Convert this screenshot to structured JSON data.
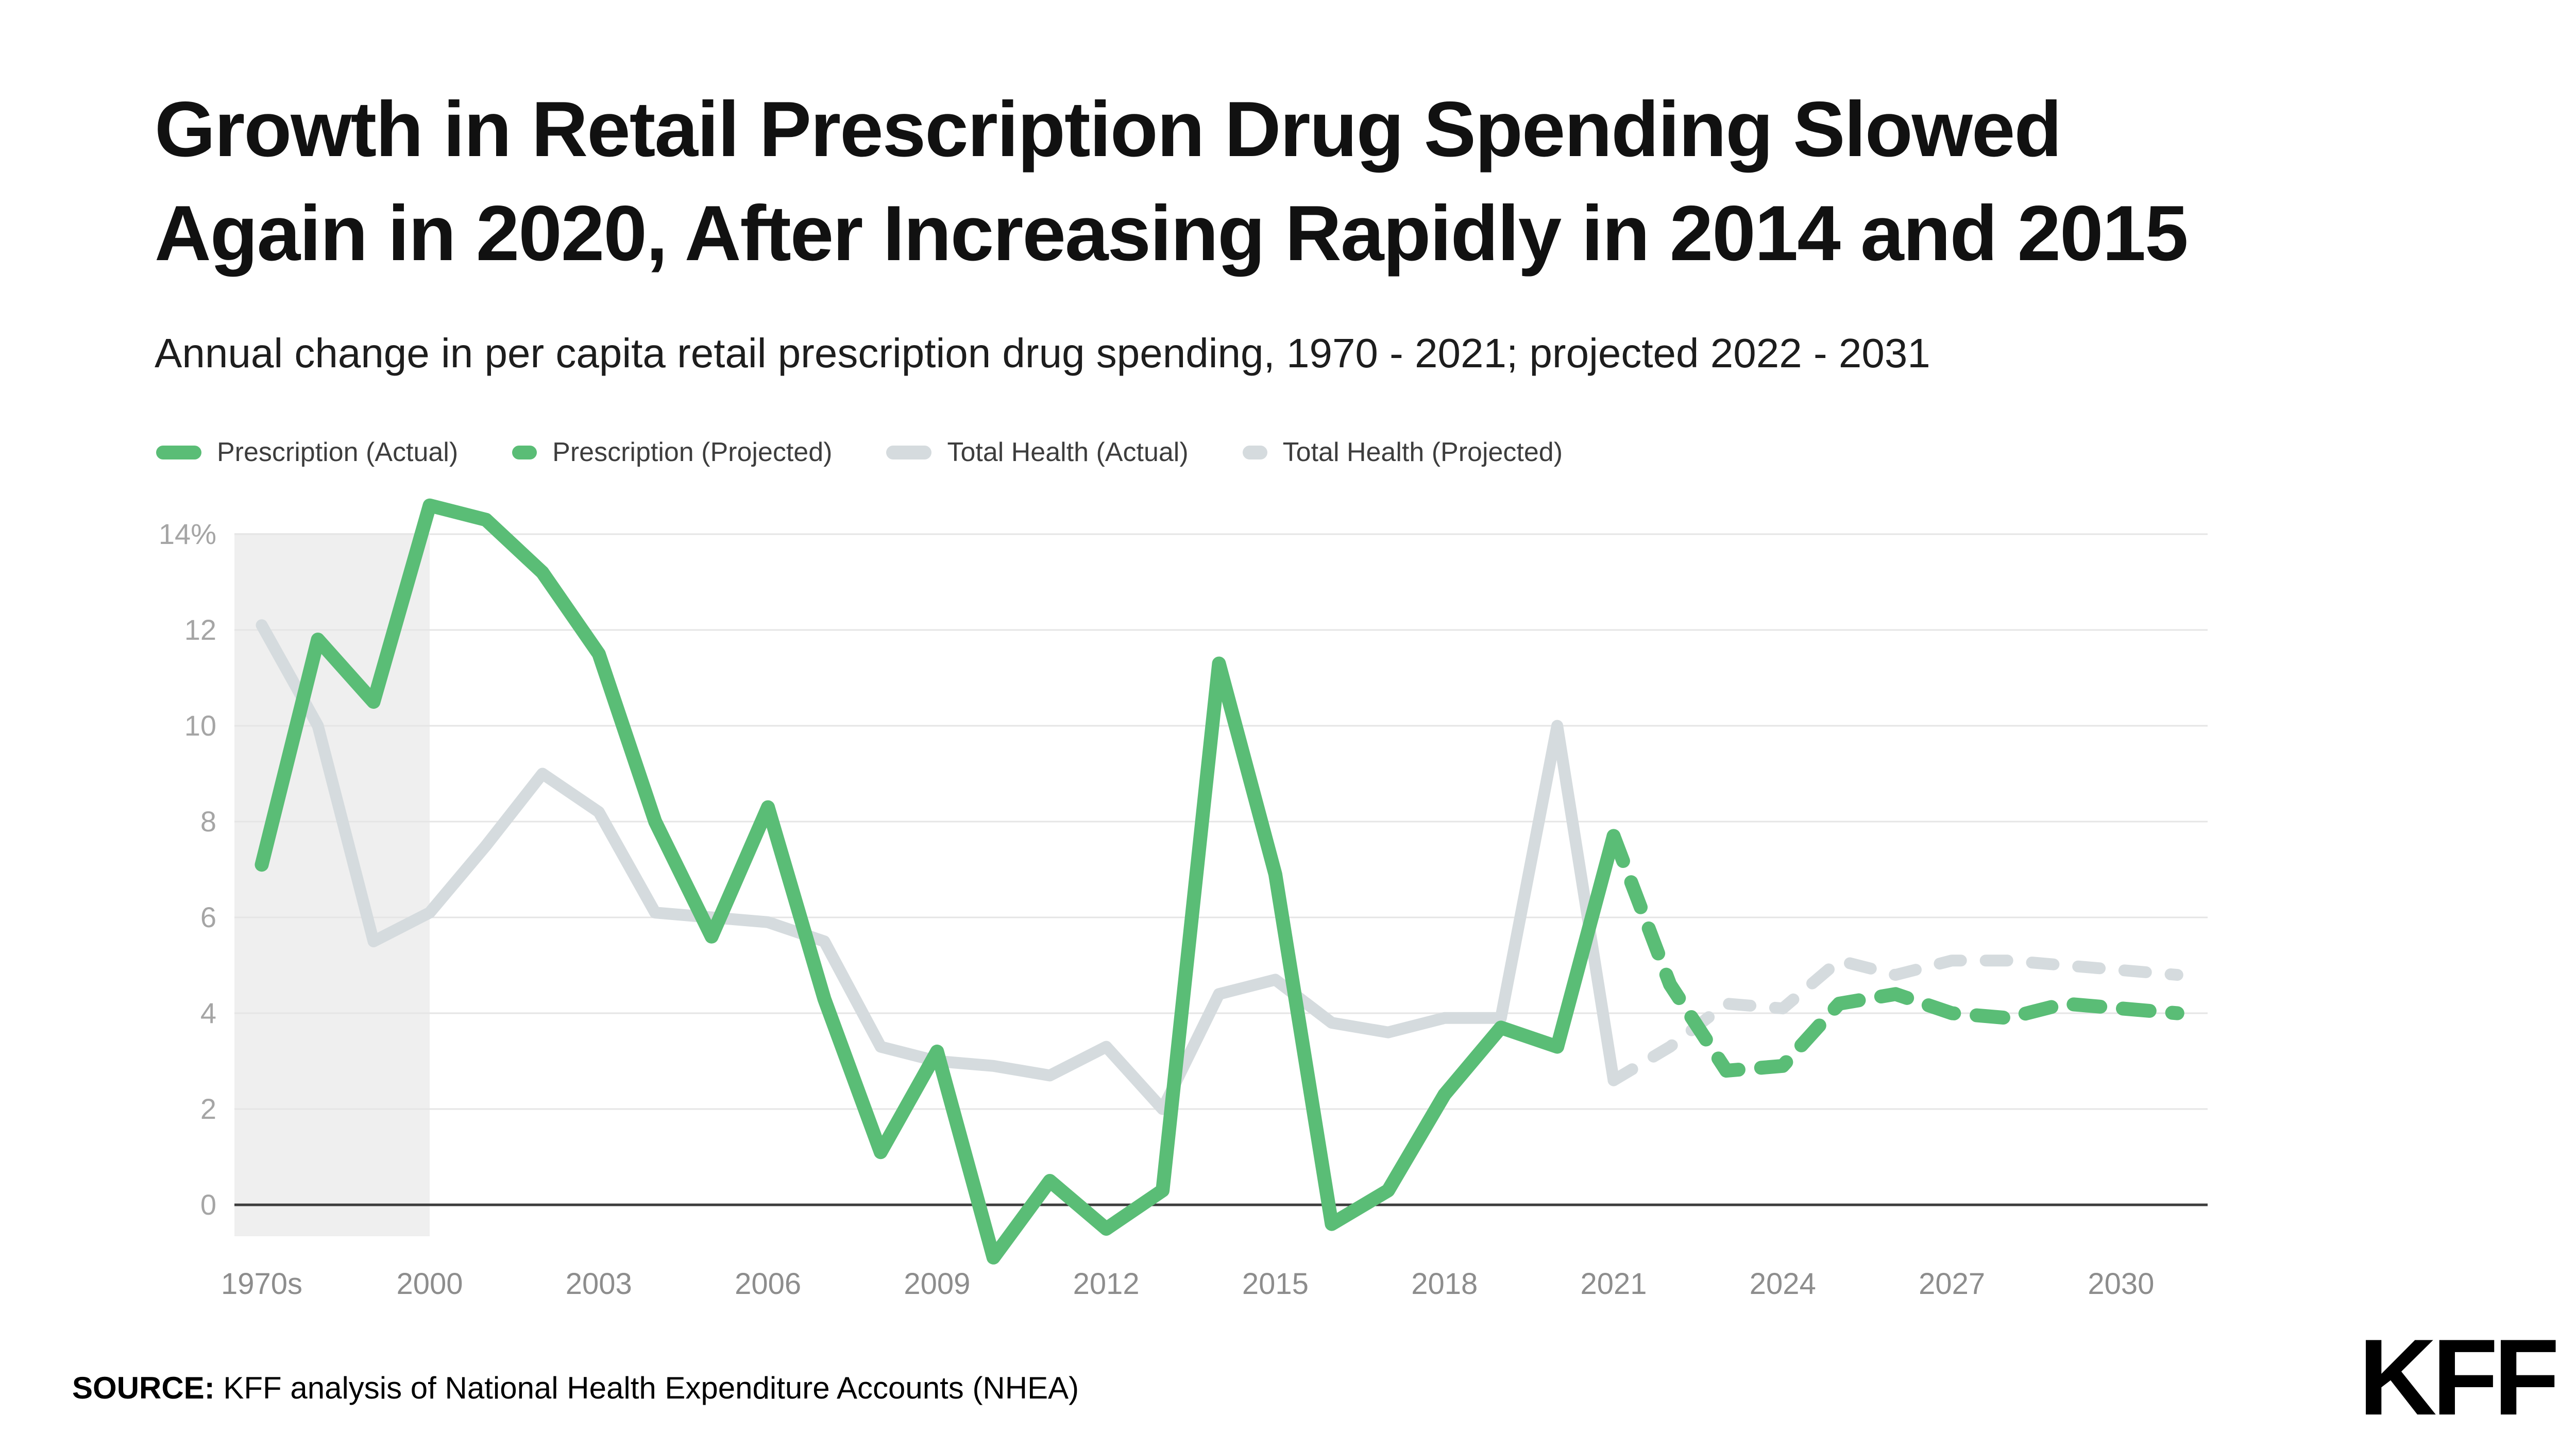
{
  "header": {
    "title_line1": "Growth in Retail Prescription Drug Spending Slowed",
    "title_line2": "Again in 2020, After Increasing Rapidly in 2014 and 2015",
    "subtitle": "Annual change in per capita retail prescription drug spending, 1970 - 2021; projected 2022 - 2031"
  },
  "legend": [
    {
      "id": "prescription-actual",
      "label": "Prescription (Actual)",
      "color": "#5abd76",
      "projected": false
    },
    {
      "id": "prescription-projected",
      "label": "Prescription (Projected)",
      "color": "#5abd76",
      "projected": true
    },
    {
      "id": "total-health-actual",
      "label": "Total Health (Actual)",
      "color": "#d5dbde",
      "projected": false
    },
    {
      "id": "total-health-projected",
      "label": "Total Health (Projected)",
      "color": "#d5dbde",
      "projected": true
    }
  ],
  "chart_data": {
    "type": "line",
    "title": "Growth in Retail Prescription Drug Spending Slowed Again in 2020, After Increasing Rapidly in 2014 and 2015",
    "subtitle": "Annual change in per capita retail prescription drug spending, 1970 - 2021; projected 2022 - 2031",
    "unit": "percent",
    "grid": "horizontal-only",
    "legend_position": "top-left",
    "ylim": [
      -1.5,
      15
    ],
    "grid_color": "#e5e5e5",
    "axis_color": "#3c3c3c",
    "shaded_region": {
      "note": "decade averages band (1970s-1990s)",
      "from": "plot-left",
      "to": 2000,
      "color": "#efefef"
    },
    "y_ticks": [
      {
        "label": "14%",
        "value": 14
      },
      {
        "label": "12",
        "value": 12
      },
      {
        "label": "10",
        "value": 10
      },
      {
        "label": "8",
        "value": 8
      },
      {
        "label": "6",
        "value": 6
      },
      {
        "label": "4",
        "value": 4
      },
      {
        "label": "2",
        "value": 2
      },
      {
        "label": "0",
        "value": 0
      }
    ],
    "x_ticks": [
      {
        "label": "1970s",
        "x": "1970s"
      },
      {
        "label": "2000",
        "x": 2000
      },
      {
        "label": "2003",
        "x": 2003
      },
      {
        "label": "2006",
        "x": 2006
      },
      {
        "label": "2009",
        "x": 2009
      },
      {
        "label": "2012",
        "x": 2012
      },
      {
        "label": "2015",
        "x": 2015
      },
      {
        "label": "2018",
        "x": 2018
      },
      {
        "label": "2021",
        "x": 2021
      },
      {
        "label": "2024",
        "x": 2024
      },
      {
        "label": "2027",
        "x": 2027
      },
      {
        "label": "2030",
        "x": 2030
      }
    ],
    "series": [
      {
        "id": "total-health-actual",
        "name": "Total Health (Actual)",
        "color": "#d5dbde",
        "width": 23,
        "dashed": false,
        "points": [
          [
            "1970s",
            12.1
          ],
          [
            "1980s",
            10.0
          ],
          [
            "1990s",
            5.5
          ],
          [
            2000,
            6.1
          ],
          [
            2001,
            7.5
          ],
          [
            2002,
            9.0
          ],
          [
            2003,
            8.2
          ],
          [
            2004,
            6.1
          ],
          [
            2005,
            6.0
          ],
          [
            2006,
            5.9
          ],
          [
            2007,
            5.5
          ],
          [
            2008,
            3.3
          ],
          [
            2009,
            3.0
          ],
          [
            2010,
            2.9
          ],
          [
            2011,
            2.7
          ],
          [
            2012,
            3.3
          ],
          [
            2013,
            2.0
          ],
          [
            2014,
            4.4
          ],
          [
            2015,
            4.7
          ],
          [
            2016,
            3.8
          ],
          [
            2017,
            3.6
          ],
          [
            2018,
            3.9
          ],
          [
            2019,
            3.9
          ],
          [
            2020,
            10.0
          ],
          [
            2021,
            2.6
          ]
        ]
      },
      {
        "id": "total-health-projected",
        "name": "Total Health (Projected)",
        "color": "#d5dbde",
        "width": 23,
        "dashed": true,
        "dash": "42 48",
        "points": [
          [
            2021,
            2.6
          ],
          [
            2022,
            3.3
          ],
          [
            2023,
            4.2
          ],
          [
            2024,
            4.1
          ],
          [
            2025,
            5.1
          ],
          [
            2026,
            4.8
          ],
          [
            2027,
            5.1
          ],
          [
            2028,
            5.1
          ],
          [
            2029,
            5.0
          ],
          [
            2030,
            4.9
          ],
          [
            2031,
            4.8
          ]
        ]
      },
      {
        "id": "prescription-actual",
        "name": "Prescription (Actual)",
        "color": "#5abd76",
        "width": 27,
        "dashed": false,
        "points": [
          [
            "1970s",
            7.1
          ],
          [
            "1980s",
            11.8
          ],
          [
            "1990s",
            10.5
          ],
          [
            2000,
            14.6
          ],
          [
            2001,
            14.3
          ],
          [
            2002,
            13.2
          ],
          [
            2003,
            11.5
          ],
          [
            2004,
            8.0
          ],
          [
            2005,
            5.6
          ],
          [
            2006,
            8.3
          ],
          [
            2007,
            4.3
          ],
          [
            2008,
            1.1
          ],
          [
            2009,
            3.2
          ],
          [
            2010,
            -1.1
          ],
          [
            2011,
            0.5
          ],
          [
            2012,
            -0.5
          ],
          [
            2013,
            0.3
          ],
          [
            2014,
            11.3
          ],
          [
            2015,
            6.9
          ],
          [
            2016,
            -0.4
          ],
          [
            2017,
            0.3
          ],
          [
            2018,
            2.3
          ],
          [
            2019,
            3.7
          ],
          [
            2020,
            3.3
          ],
          [
            2021,
            7.7
          ]
        ]
      },
      {
        "id": "prescription-projected",
        "name": "Prescription (Projected)",
        "color": "#5abd76",
        "width": 27,
        "dashed": true,
        "dash": "52 44",
        "points": [
          [
            2021,
            7.7
          ],
          [
            2022,
            4.6
          ],
          [
            2023,
            2.8
          ],
          [
            2024,
            2.9
          ],
          [
            2025,
            4.2
          ],
          [
            2026,
            4.4
          ],
          [
            2027,
            4.0
          ],
          [
            2028,
            3.9
          ],
          [
            2029,
            4.2
          ],
          [
            2030,
            4.1
          ],
          [
            2031,
            4.0
          ]
        ]
      }
    ]
  },
  "source": {
    "label": "SOURCE:",
    "text": "KFF analysis of National Health Expenditure Accounts (NHEA)"
  },
  "logo_text": "KFF"
}
